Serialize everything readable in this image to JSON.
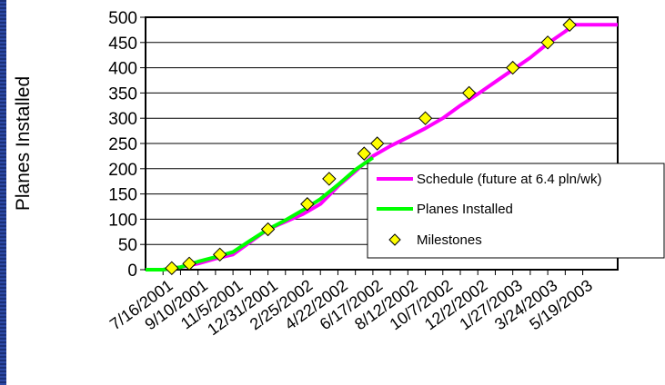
{
  "chart_data": {
    "type": "line",
    "title": "",
    "xlabel": "",
    "ylabel": "Planes Installed",
    "ylim": [
      0,
      500
    ],
    "yticks": [
      0,
      50,
      100,
      150,
      200,
      250,
      300,
      350,
      400,
      450,
      500
    ],
    "xlim": [
      "2001-06-18",
      "2003-07-14"
    ],
    "xtick_dates": [
      "2001-07-16",
      "2001-09-10",
      "2001-11-05",
      "2001-12-31",
      "2002-02-25",
      "2002-04-22",
      "2002-06-17",
      "2002-08-12",
      "2002-10-07",
      "2002-12-02",
      "2003-01-27",
      "2003-03-24",
      "2003-05-19"
    ],
    "xtick_labels": [
      "7/16/2001",
      "9/10/2001",
      "11/5/2001",
      "12/31/2001",
      "2/25/2002",
      "4/22/2002",
      "6/17/2002",
      "8/12/2002",
      "10/7/2002",
      "12/2/2002",
      "1/27/2003",
      "3/24/2003",
      "5/19/2003"
    ],
    "grid": true,
    "legend_position": "right",
    "series": [
      {
        "name": "Schedule (future at 6.4 pln/wk)",
        "color": "#ff00ff",
        "points": [
          [
            "2001-06-18",
            0
          ],
          [
            "2001-07-16",
            0
          ],
          [
            "2001-08-13",
            5
          ],
          [
            "2001-09-10",
            12
          ],
          [
            "2001-10-08",
            22
          ],
          [
            "2001-11-05",
            30
          ],
          [
            "2001-12-03",
            55
          ],
          [
            "2001-12-31",
            80
          ],
          [
            "2002-01-28",
            95
          ],
          [
            "2002-02-25",
            110
          ],
          [
            "2002-03-25",
            130
          ],
          [
            "2002-04-22",
            165
          ],
          [
            "2002-05-20",
            195
          ],
          [
            "2002-06-17",
            225
          ],
          [
            "2002-07-15",
            245
          ],
          [
            "2002-08-12",
            262
          ],
          [
            "2002-09-09",
            280
          ],
          [
            "2002-10-07",
            300
          ],
          [
            "2002-11-04",
            325
          ],
          [
            "2002-12-02",
            348
          ],
          [
            "2002-12-30",
            372
          ],
          [
            "2003-01-27",
            396
          ],
          [
            "2003-02-24",
            420
          ],
          [
            "2003-03-24",
            448
          ],
          [
            "2003-04-21",
            472
          ],
          [
            "2003-05-05",
            485
          ],
          [
            "2003-05-19",
            485
          ],
          [
            "2003-07-14",
            485
          ]
        ]
      },
      {
        "name": "Planes Installed",
        "color": "#00ff00",
        "points": [
          [
            "2001-06-18",
            0
          ],
          [
            "2001-07-16",
            0
          ],
          [
            "2001-08-13",
            5
          ],
          [
            "2001-09-10",
            16
          ],
          [
            "2001-10-08",
            25
          ],
          [
            "2001-11-05",
            35
          ],
          [
            "2001-12-03",
            58
          ],
          [
            "2001-12-31",
            80
          ],
          [
            "2002-01-28",
            98
          ],
          [
            "2002-02-25",
            118
          ],
          [
            "2002-03-25",
            140
          ],
          [
            "2002-04-22",
            168
          ],
          [
            "2002-05-20",
            198
          ],
          [
            "2002-06-17",
            222
          ]
        ]
      }
    ],
    "milestones": {
      "name": "Milestones",
      "color": "#ffff00",
      "points": [
        [
          "2001-07-30",
          3
        ],
        [
          "2001-08-27",
          12
        ],
        [
          "2001-10-15",
          30
        ],
        [
          "2001-12-31",
          80
        ],
        [
          "2002-03-04",
          130
        ],
        [
          "2002-04-08",
          180
        ],
        [
          "2002-06-03",
          230
        ],
        [
          "2002-06-24",
          250
        ],
        [
          "2002-09-09",
          300
        ],
        [
          "2002-11-18",
          350
        ],
        [
          "2003-01-27",
          400
        ],
        [
          "2003-03-24",
          450
        ],
        [
          "2003-04-28",
          485
        ]
      ]
    }
  }
}
